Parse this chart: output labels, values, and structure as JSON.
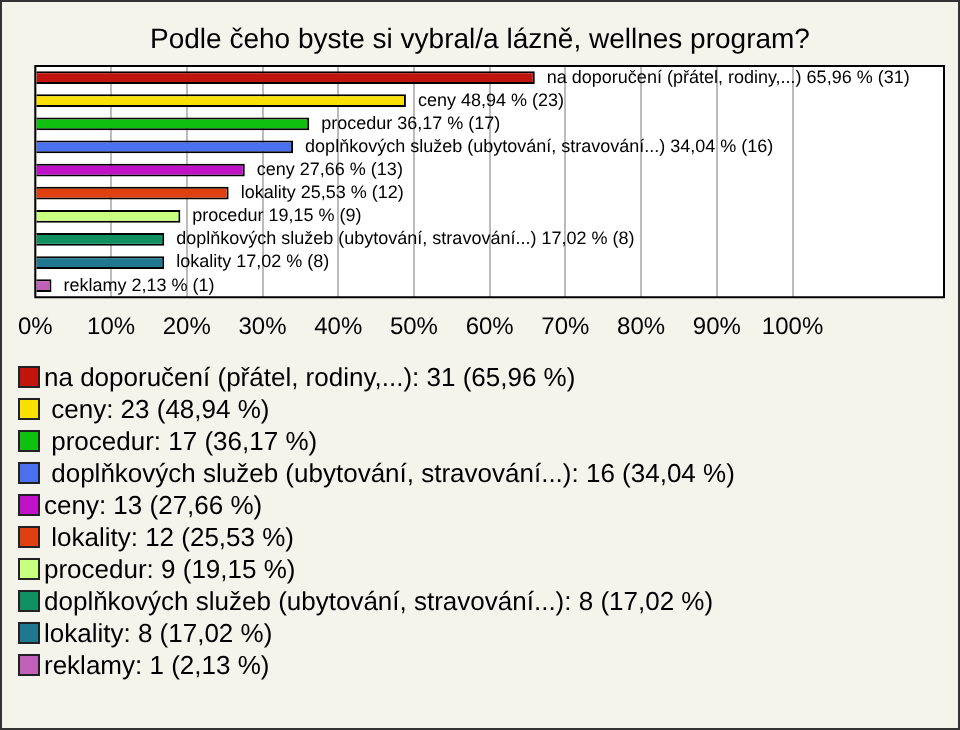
{
  "chart_data": {
    "type": "bar",
    "orientation": "horizontal",
    "title": "Podle čeho byste si vybral/a lázně, wellnes program?",
    "categories": [
      "na doporučení (přátel, rodiny,...)",
      "ceny",
      "procedur",
      "doplňkových služeb (ubytování, stravování...)",
      "ceny",
      "lokality",
      "procedur",
      "doplňkových služeb (ubytování, stravování...)",
      "lokality",
      "reklamy"
    ],
    "values": [
      65.96,
      48.94,
      36.17,
      34.04,
      27.66,
      25.53,
      19.15,
      17.02,
      17.02,
      2.13
    ],
    "value_labels": [
      "65,96 % (31)",
      "48,94 % (23)",
      "36,17 % (17)",
      "34,04 % (16)",
      "27,66 % (13)",
      "25,53 % (12)",
      "19,15 % (9)",
      "17,02 % (8)",
      "17,02 % (8)",
      "2,13 % (1)"
    ],
    "colors": [
      "#c0140c",
      "#f8e000",
      "#10c010",
      "#4a70f0",
      "#c010c8",
      "#e04010",
      "#c8ff80",
      "#109060",
      "#207890",
      "#c060b8"
    ],
    "xlim": [
      0,
      120
    ],
    "xticks": [
      {
        "value": 0,
        "label": "0%"
      },
      {
        "value": 10,
        "label": "10%"
      },
      {
        "value": 20,
        "label": "20%"
      },
      {
        "value": 30,
        "label": "30%"
      },
      {
        "value": 40,
        "label": "40%"
      },
      {
        "value": 50,
        "label": "50%"
      },
      {
        "value": 60,
        "label": "60%"
      },
      {
        "value": 70,
        "label": "70%"
      },
      {
        "value": 80,
        "label": "80%"
      },
      {
        "value": 90,
        "label": "90%"
      },
      {
        "value": 100,
        "label": "100%"
      }
    ],
    "grid": "x",
    "tick_labels": "x",
    "annotations": [
      "na doporučení (přátel, rodiny,...): 31 (65,96 %)",
      " ceny: 23 (48,94 %)",
      " procedur: 17 (36,17 %)",
      " doplňkových služeb (ubytování, stravování...): 16 (34,04 %)",
      "ceny: 13 (27,66 %)",
      " lokality: 12 (25,53 %)",
      "procedur: 9 (19,15 %)",
      "doplňkových služeb (ubytování, stravování...): 8 (17,02 %)",
      "lokality: 8 (17,02 %)",
      "reklamy: 1 (2,13 %)"
    ]
  }
}
